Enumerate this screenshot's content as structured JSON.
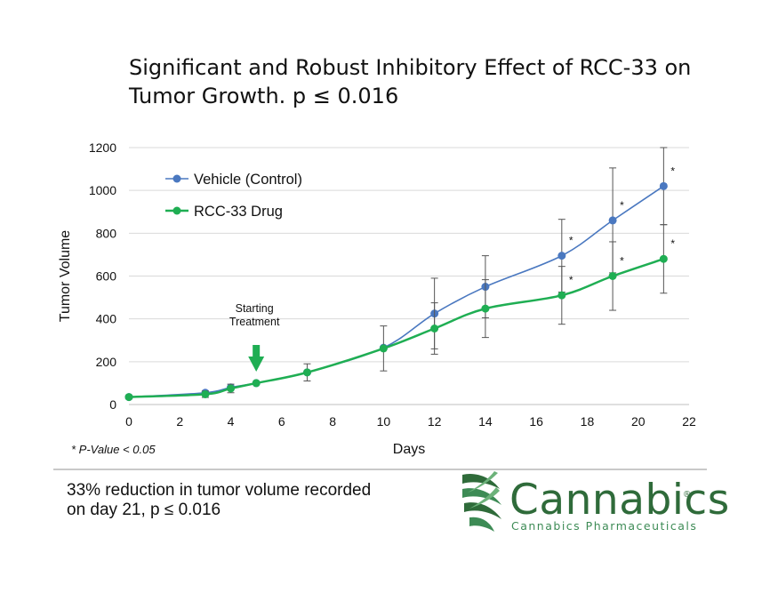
{
  "chart_data": {
    "type": "line",
    "title": "Significant and Robust Inhibitory Effect of RCC-33 on Tumor Growth. p ≤ 0.016",
    "title_lines": [
      "Significant and Robust Inhibitory Effect of RCC-33 on",
      "Tumor Growth. p ≤ 0.016"
    ],
    "xlabel": "Days",
    "ylabel": "Tumor Volume",
    "xlim": [
      0,
      22
    ],
    "ylim": [
      0,
      1200
    ],
    "xticks": [
      0,
      2,
      4,
      6,
      8,
      10,
      12,
      14,
      16,
      18,
      20,
      22
    ],
    "yticks": [
      0,
      200,
      400,
      600,
      800,
      1000,
      1200
    ],
    "grid": "horizontal",
    "legend_position": "top-left",
    "series": [
      {
        "name": "Vehicle (Control)",
        "color": "#4a78c0",
        "x": [
          0,
          3,
          4,
          5,
          7,
          10,
          12,
          14,
          17,
          19,
          21
        ],
        "y": [
          35,
          55,
          80,
          100,
          150,
          265,
          425,
          550,
          695,
          860,
          1020
        ],
        "err": [
          0,
          0,
          0,
          0,
          0,
          0,
          165,
          145,
          170,
          245,
          180
        ]
      },
      {
        "name": "RCC-33 Drug",
        "color": "#1fae53",
        "x": [
          0,
          3,
          4,
          5,
          7,
          10,
          12,
          14,
          17,
          19,
          21
        ],
        "y": [
          35,
          48,
          75,
          100,
          150,
          262,
          355,
          448,
          510,
          600,
          680
        ],
        "err": [
          0,
          15,
          20,
          0,
          40,
          105,
          120,
          135,
          135,
          160,
          160
        ]
      }
    ],
    "significance_marker": "*",
    "significant_days": [
      17,
      19,
      21
    ],
    "annotation": {
      "label_lines": [
        "Starting",
        "Treatment"
      ],
      "day": 5,
      "color": "#1fae53"
    }
  },
  "footnote": "* P-Value < 0.05",
  "summary": {
    "line1": "33% reduction in tumor volume recorded",
    "line2": "on day 21, p ≤ 0.016"
  },
  "brand": {
    "name": "Cannabics",
    "registered": "®",
    "subtitle": "Cannabics Pharmaceuticals",
    "colors": {
      "dark": "#2f6b3a",
      "light": "#3d8b55"
    }
  }
}
